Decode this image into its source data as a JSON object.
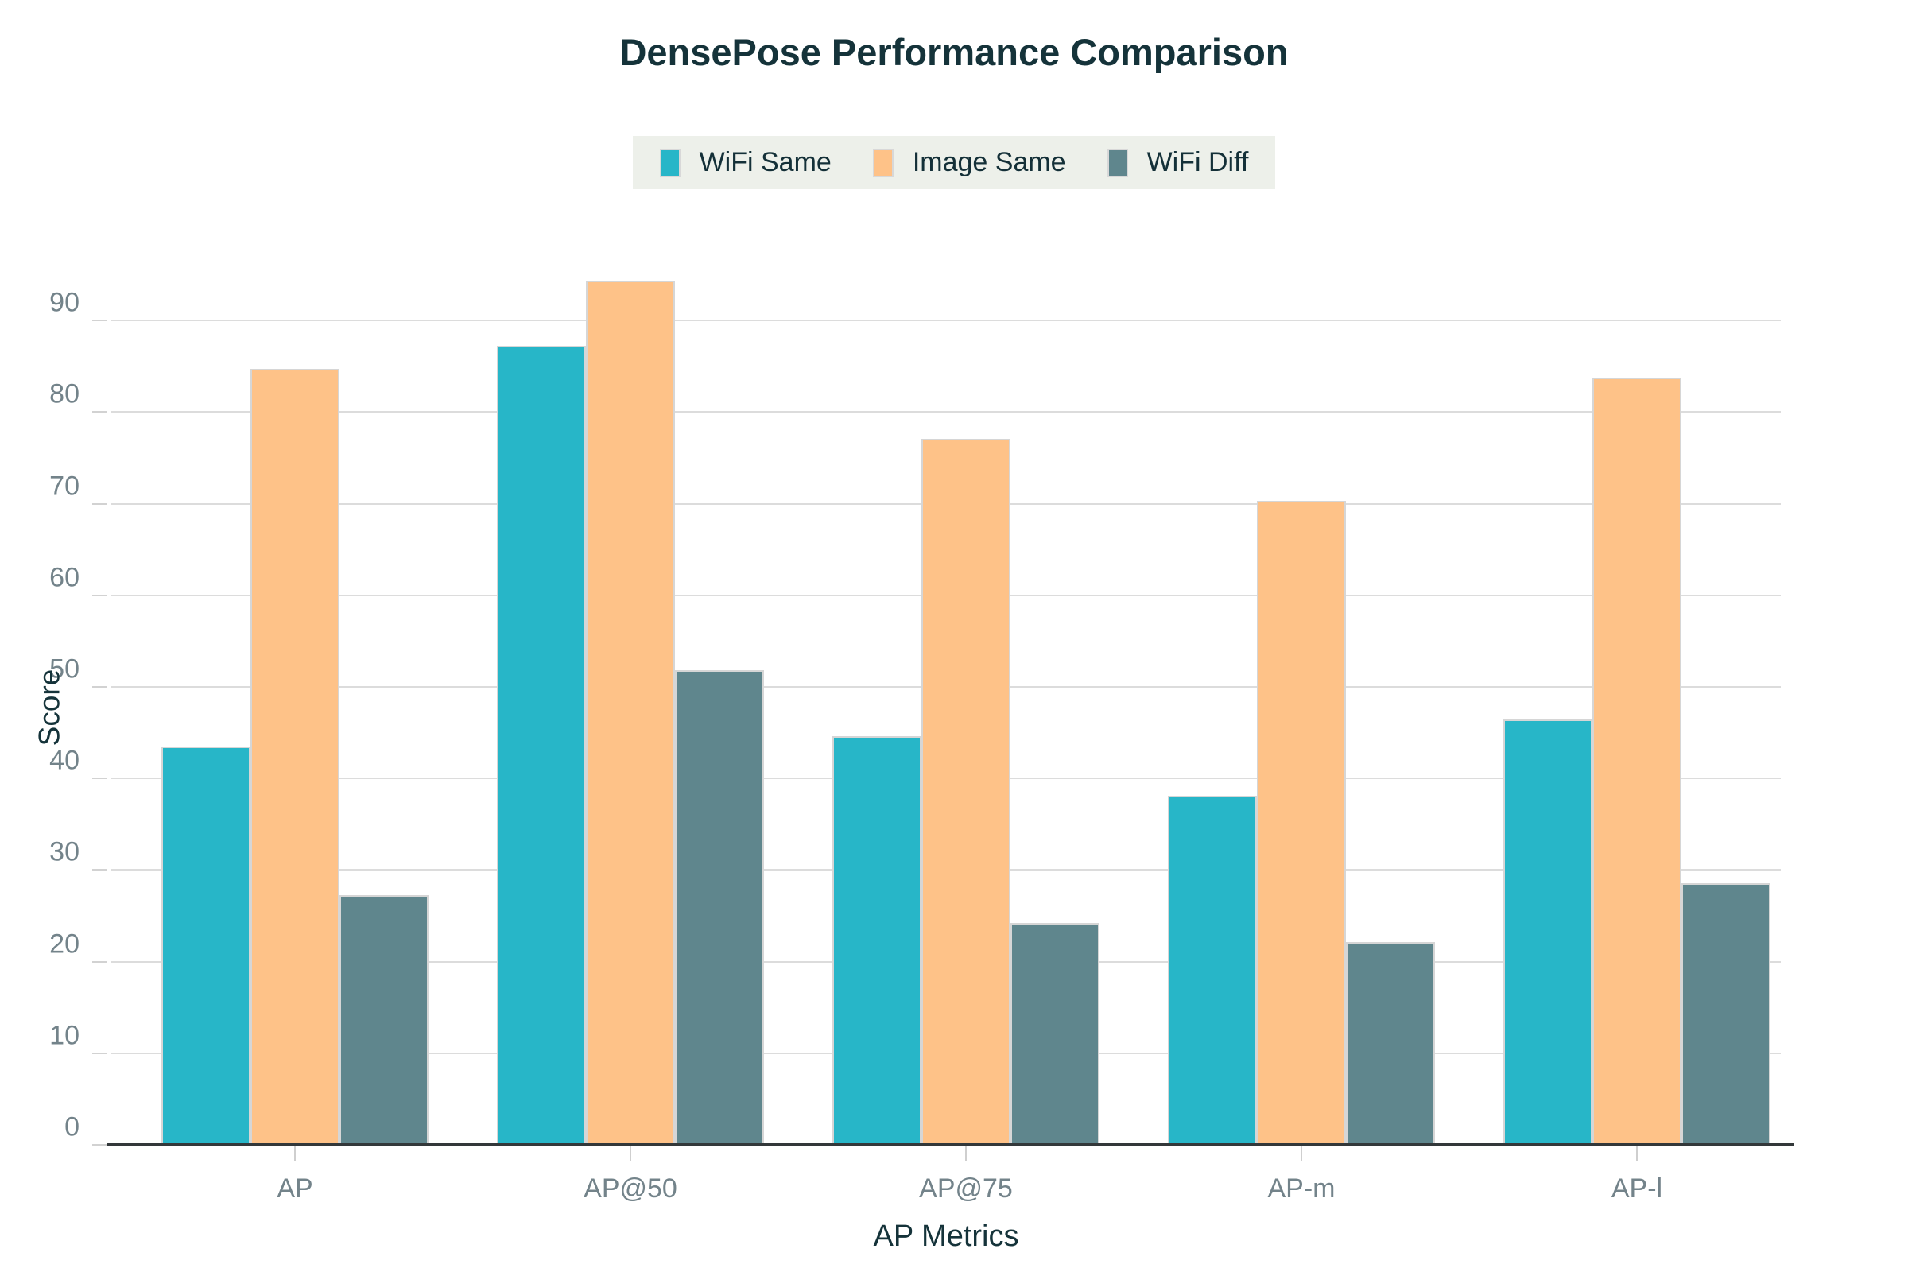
{
  "title": "DensePose Performance Comparison",
  "chart_data": {
    "type": "bar",
    "title": "DensePose Performance Comparison",
    "categories": [
      "AP",
      "AP@50",
      "AP@75",
      "AP-m",
      "AP-l"
    ],
    "series": [
      {
        "name": "WiFi Same",
        "color": "#27b6c8",
        "values": [
          43.5,
          87.2,
          44.6,
          38.1,
          46.4
        ]
      },
      {
        "name": "Image Same",
        "color": "#fec288",
        "values": [
          84.7,
          94.4,
          77.1,
          70.3,
          83.8
        ]
      },
      {
        "name": "WiFi Diff",
        "color": "#5f868d",
        "values": [
          27.3,
          51.8,
          24.2,
          22.1,
          28.6
        ]
      }
    ],
    "xlabel": "AP Metrics",
    "ylabel": "Score",
    "ylim": [
      0,
      95
    ],
    "yticks": [
      0,
      10,
      20,
      30,
      40,
      50,
      60,
      70,
      80,
      90
    ],
    "grid": true,
    "legend_position": "top-center"
  },
  "palette": {
    "background": "#ffffff",
    "legend_background": "#edf0ea",
    "gridline": "#dcdcdc",
    "axis_line": "#33383a",
    "tick_text": "#73838a",
    "heading_text": "#15333a",
    "bar_border": "#d6d6d6"
  }
}
